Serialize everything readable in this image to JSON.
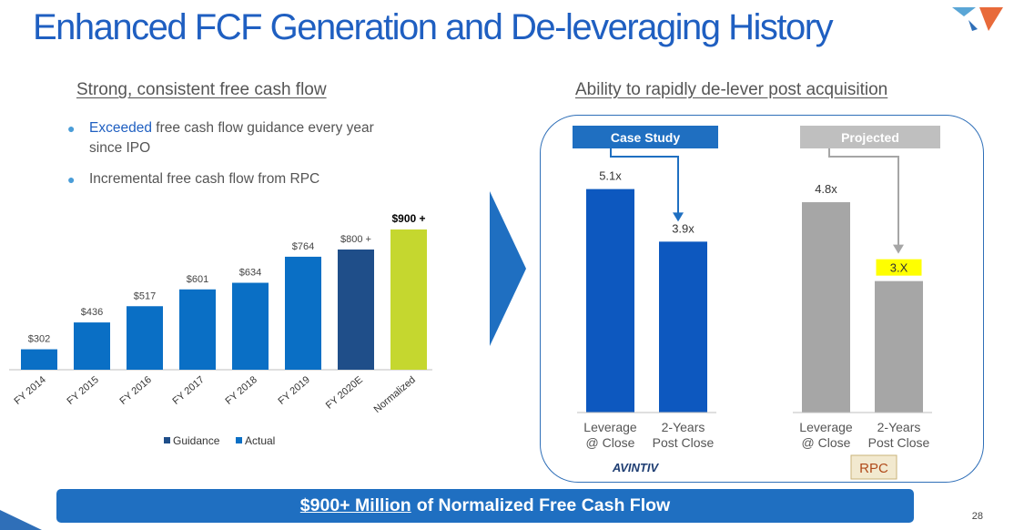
{
  "title": "Enhanced FCF Generation and De-leveraging History",
  "left": {
    "heading": "Strong, consistent free cash flow",
    "bullets": [
      {
        "highlight": "Exceeded",
        "text": " free cash flow guidance every year since IPO"
      },
      {
        "highlight": "",
        "text": "Incremental free cash flow from RPC"
      }
    ]
  },
  "right": {
    "heading": "Ability to rapidly de-lever post acquisition",
    "case_study_label": "Case Study",
    "projected_label": "Projected",
    "avintiv_logo": "AVINTIV",
    "rpc_logo": "RPC"
  },
  "banner": {
    "amount": "$900+ Million",
    "text": "of Normalized Free Cash Flow"
  },
  "page_number": "28",
  "colors": {
    "title_blue": "#1f5fc1",
    "bar_blue": "#0a6fc5",
    "guidance_navy": "#1f4e89",
    "normalized_green": "#c5d72f",
    "lever_blue": "#0d58bf",
    "projected_gray": "#a6a6a6",
    "highlight_yellow": "#ffff00"
  },
  "chart_data": [
    {
      "type": "bar",
      "title": "Strong, consistent free cash flow",
      "categories": [
        "FY 2014",
        "FY 2015",
        "FY 2016",
        "FY 2017",
        "FY 2018",
        "FY 2019",
        "FY 2020E",
        "Normalized"
      ],
      "values": [
        302,
        436,
        517,
        601,
        634,
        764,
        800,
        900
      ],
      "data_labels": [
        "$302",
        "$436",
        "$517",
        "$601",
        "$634",
        "$764",
        "$800",
        "$900"
      ],
      "label_suffix": [
        "",
        "",
        "",
        "",
        "",
        "",
        "+",
        "+"
      ],
      "series_type": [
        "actual",
        "actual",
        "actual",
        "actual",
        "actual",
        "actual",
        "guidance",
        "normalized"
      ],
      "legend": [
        "Guidance",
        "Actual"
      ],
      "ylim": [
        200,
        950
      ]
    },
    {
      "type": "bar",
      "title": "Ability to rapidly de-lever post acquisition",
      "groups": [
        {
          "name": "Case Study",
          "categories": [
            "Leverage\n@ Close",
            "2-Years\nPost Close"
          ],
          "values": [
            5.1,
            3.9
          ],
          "labels": [
            "5.1x",
            "3.9x"
          ]
        },
        {
          "name": "Projected",
          "categories": [
            "Leverage\n@ Close",
            "2-Years\nPost Close"
          ],
          "values": [
            4.8,
            3.0
          ],
          "labels": [
            "4.8x",
            "3.X"
          ]
        }
      ],
      "ylim": [
        0,
        5.3
      ]
    }
  ]
}
